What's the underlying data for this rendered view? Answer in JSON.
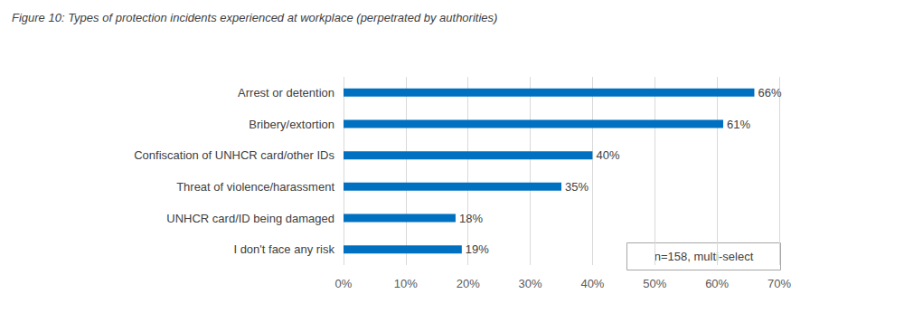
{
  "chart_data": {
    "type": "bar",
    "orientation": "horizontal",
    "title": "Figure 10: Types of protection incidents experienced at workplace (perpetrated by authorities)",
    "categories": [
      "Arrest or detention",
      "Bribery/extortion",
      "Confiscation of UNHCR card/other IDs",
      "Threat of violence/harassment",
      "UNHCR card/ID being damaged",
      "I don't face any risk"
    ],
    "values": [
      66,
      61,
      40,
      35,
      18,
      19
    ],
    "value_labels": [
      "66%",
      "61%",
      "40%",
      "35%",
      "18%",
      "19%"
    ],
    "color": "#0070c0",
    "xlim": [
      0,
      70
    ],
    "xticks": [
      {
        "value": 0,
        "label": "0%"
      },
      {
        "value": 10,
        "label": "10%"
      },
      {
        "value": 20,
        "label": "20%"
      },
      {
        "value": 30,
        "label": "30%"
      },
      {
        "value": 40,
        "label": "40%"
      },
      {
        "value": 50,
        "label": "50%"
      },
      {
        "value": 60,
        "label": "60%"
      },
      {
        "value": 70,
        "label": "70%"
      }
    ],
    "grid": true,
    "data_labels": true,
    "annotations": [
      "n=158, multi-select"
    ]
  }
}
